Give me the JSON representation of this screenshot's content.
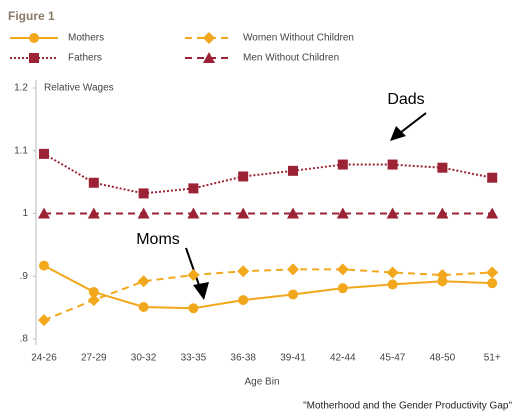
{
  "chart_data": {
    "type": "line",
    "title": "Figure 1",
    "ylabel": "Relative Wages",
    "xlabel": "Age Bin",
    "caption": "\"Motherhood and the Gender Productivity Gap\"",
    "annotations": [
      "Dads",
      "Moms"
    ],
    "categories": [
      "24-26",
      "27-29",
      "30-32",
      "33-35",
      "36-38",
      "39-41",
      "42-44",
      "45-47",
      "48-50",
      "51+"
    ],
    "series": [
      {
        "name": "Mothers",
        "color": "#f2a81d",
        "line_style": "solid",
        "marker": "circle",
        "values": [
          0.917,
          0.875,
          0.851,
          0.849,
          0.862,
          0.871,
          0.881,
          0.887,
          0.892,
          0.889
        ]
      },
      {
        "name": "Women Without Children",
        "color": "#f2a81d",
        "line_style": "dashed",
        "marker": "diamond",
        "values": [
          0.83,
          0.862,
          0.892,
          0.902,
          0.908,
          0.911,
          0.911,
          0.906,
          0.902,
          0.906
        ]
      },
      {
        "name": "Fathers",
        "color": "#9b2335",
        "line_style": "dotted",
        "marker": "square",
        "values": [
          1.095,
          1.049,
          1.032,
          1.04,
          1.059,
          1.068,
          1.078,
          1.078,
          1.073,
          1.057
        ]
      },
      {
        "name": "Men Without Children",
        "color": "#9b2335",
        "line_style": "dashed",
        "marker": "triangle",
        "values": [
          1.0,
          1.0,
          1.0,
          1.0,
          1.0,
          1.0,
          1.0,
          1.0,
          1.0,
          1.0
        ]
      }
    ],
    "ylim": [
      0.8,
      1.2
    ],
    "yticks": [
      {
        "value": 0.8,
        "label": ".8"
      },
      {
        "value": 0.9,
        "label": ".9"
      },
      1,
      1.1,
      1.2
    ],
    "grid": false
  }
}
